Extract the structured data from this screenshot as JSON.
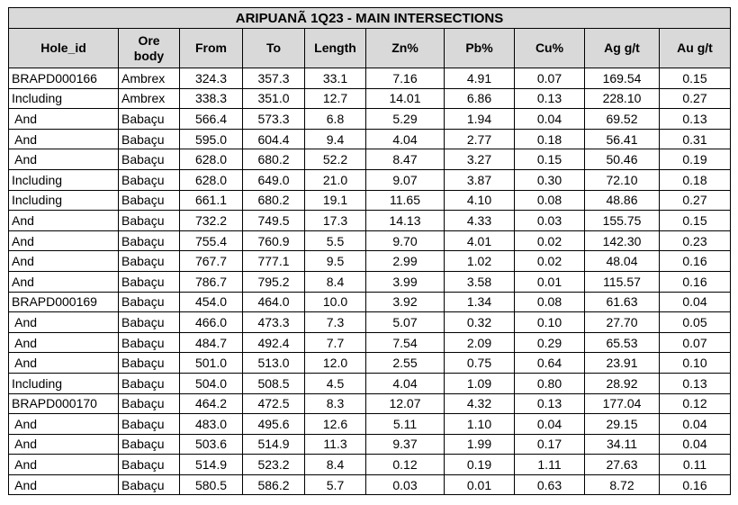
{
  "title": "ARIPUANÃ 1Q23 - MAIN INTERSECTIONS",
  "headers": [
    "Hole_id",
    "Ore body",
    "From",
    "To",
    "Length",
    "Zn%",
    "Pb%",
    "Cu%",
    "Ag g/t",
    "Au g/t"
  ],
  "rows": [
    [
      "BRAPD000166",
      "Ambrex",
      "324.3",
      "357.3",
      "33.1",
      "7.16",
      "4.91",
      "0.07",
      "169.54",
      "0.15"
    ],
    [
      "Including",
      "Ambrex",
      "338.3",
      "351.0",
      "12.7",
      "14.01",
      "6.86",
      "0.13",
      "228.10",
      "0.27"
    ],
    [
      " And",
      "Babaçu",
      "566.4",
      "573.3",
      "6.8",
      "5.29",
      "1.94",
      "0.04",
      "69.52",
      "0.13"
    ],
    [
      " And",
      "Babaçu",
      "595.0",
      "604.4",
      "9.4",
      "4.04",
      "2.77",
      "0.18",
      "56.41",
      "0.31"
    ],
    [
      " And",
      "Babaçu",
      "628.0",
      "680.2",
      "52.2",
      "8.47",
      "3.27",
      "0.15",
      "50.46",
      "0.19"
    ],
    [
      "Including",
      "Babaçu",
      "628.0",
      "649.0",
      "21.0",
      "9.07",
      "3.87",
      "0.30",
      "72.10",
      "0.18"
    ],
    [
      "Including",
      "Babaçu",
      "661.1",
      "680.2",
      "19.1",
      "11.65",
      "4.10",
      "0.08",
      "48.86",
      "0.27"
    ],
    [
      "And",
      "Babaçu",
      "732.2",
      "749.5",
      "17.3",
      "14.13",
      "4.33",
      "0.03",
      "155.75",
      "0.15"
    ],
    [
      "And",
      "Babaçu",
      "755.4",
      "760.9",
      "5.5",
      "9.70",
      "4.01",
      "0.02",
      "142.30",
      "0.23"
    ],
    [
      "And",
      "Babaçu",
      "767.7",
      "777.1",
      "9.5",
      "2.99",
      "1.02",
      "0.02",
      "48.04",
      "0.16"
    ],
    [
      "And",
      "Babaçu",
      "786.7",
      "795.2",
      "8.4",
      "3.99",
      "3.58",
      "0.01",
      "115.57",
      "0.16"
    ],
    [
      "BRAPD000169",
      "Babaçu",
      "454.0",
      "464.0",
      "10.0",
      "3.92",
      "1.34",
      "0.08",
      "61.63",
      "0.04"
    ],
    [
      " And",
      "Babaçu",
      "466.0",
      "473.3",
      "7.3",
      "5.07",
      "0.32",
      "0.10",
      "27.70",
      "0.05"
    ],
    [
      " And",
      "Babaçu",
      "484.7",
      "492.4",
      "7.7",
      "7.54",
      "2.09",
      "0.29",
      "65.53",
      "0.07"
    ],
    [
      " And",
      "Babaçu",
      "501.0",
      "513.0",
      "12.0",
      "2.55",
      "0.75",
      "0.64",
      "23.91",
      "0.10"
    ],
    [
      "Including",
      "Babaçu",
      "504.0",
      "508.5",
      "4.5",
      "4.04",
      "1.09",
      "0.80",
      "28.92",
      "0.13"
    ],
    [
      "BRAPD000170",
      "Babaçu",
      "464.2",
      "472.5",
      "8.3",
      "12.07",
      "4.32",
      "0.13",
      "177.04",
      "0.12"
    ],
    [
      " And",
      "Babaçu",
      "483.0",
      "495.6",
      "12.6",
      "5.11",
      "1.10",
      "0.04",
      "29.15",
      "0.04"
    ],
    [
      " And",
      "Babaçu",
      "503.6",
      "514.9",
      "11.3",
      "9.37",
      "1.99",
      "0.17",
      "34.11",
      "0.04"
    ],
    [
      " And",
      "Babaçu",
      "514.9",
      "523.2",
      "8.4",
      "0.12",
      "0.19",
      "1.11",
      "27.63",
      "0.11"
    ],
    [
      " And",
      "Babaçu",
      "580.5",
      "586.2",
      "5.7",
      "0.03",
      "0.01",
      "0.63",
      "8.72",
      "0.16"
    ]
  ]
}
